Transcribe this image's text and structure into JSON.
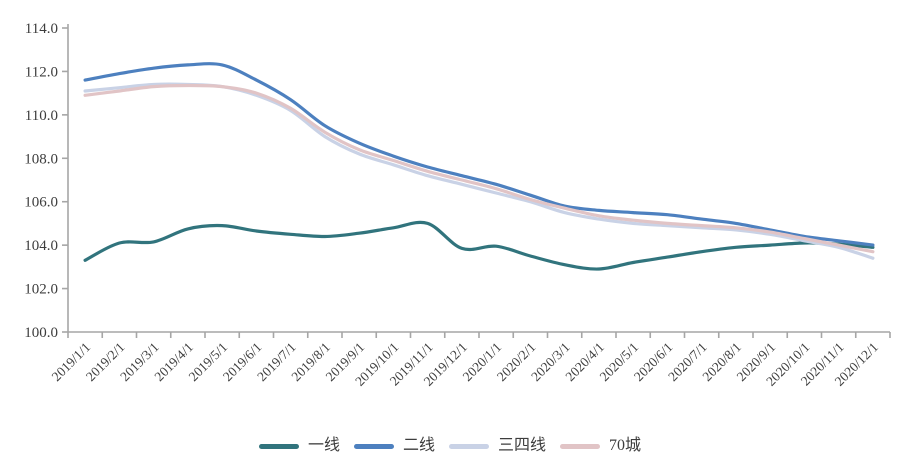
{
  "chart_data": {
    "type": "line",
    "title": "",
    "xlabel": "",
    "ylabel": "",
    "grid": false,
    "legend_position": "bottom",
    "axis_color": "#a6a6a6",
    "text_color": "#3d3d3d",
    "ylim": [
      100.0,
      114.0
    ],
    "ytick_step": 2.0,
    "categories": [
      "2019/1/1",
      "2019/2/1",
      "2019/3/1",
      "2019/4/1",
      "2019/5/1",
      "2019/6/1",
      "2019/7/1",
      "2019/8/1",
      "2019/9/1",
      "2019/10/1",
      "2019/11/1",
      "2019/12/1",
      "2020/1/1",
      "2020/2/1",
      "2020/3/1",
      "2020/4/1",
      "2020/5/1",
      "2020/6/1",
      "2020/7/1",
      "2020/8/1",
      "2020/9/1",
      "2020/10/1",
      "2020/11/1",
      "2020/12/1"
    ],
    "series": [
      {
        "key": "tier1",
        "name": "一线",
        "color": "#31747d",
        "values": [
          103.3,
          104.1,
          104.15,
          104.75,
          104.9,
          104.65,
          104.5,
          104.4,
          104.55,
          104.8,
          105.0,
          103.85,
          103.95,
          103.5,
          103.1,
          102.9,
          103.2,
          103.45,
          103.7,
          103.9,
          104.0,
          104.1,
          104.05,
          103.9
        ]
      },
      {
        "key": "tier2",
        "name": "二线",
        "color": "#4d80bf",
        "values": [
          111.6,
          111.9,
          112.15,
          112.3,
          112.3,
          111.6,
          110.7,
          109.5,
          108.7,
          108.1,
          107.6,
          107.2,
          106.8,
          106.3,
          105.8,
          105.6,
          105.5,
          105.4,
          105.2,
          105.0,
          104.7,
          104.4,
          104.2,
          104.0
        ]
      },
      {
        "key": "tier34",
        "name": "三四线",
        "color": "#c9d2e6",
        "values": [
          111.1,
          111.25,
          111.4,
          111.4,
          111.3,
          110.9,
          110.2,
          109.0,
          108.2,
          107.7,
          107.2,
          106.8,
          106.4,
          106.0,
          105.5,
          105.2,
          105.0,
          104.9,
          104.8,
          104.7,
          104.5,
          104.2,
          103.9,
          103.4
        ]
      },
      {
        "key": "cities70",
        "name": "70城",
        "color": "#e1c4c6",
        "values": [
          110.9,
          111.1,
          111.3,
          111.35,
          111.3,
          111.0,
          110.3,
          109.2,
          108.4,
          107.9,
          107.4,
          107.0,
          106.6,
          106.1,
          105.7,
          105.35,
          105.15,
          105.0,
          104.9,
          104.8,
          104.6,
          104.3,
          104.0,
          103.7
        ]
      }
    ]
  }
}
